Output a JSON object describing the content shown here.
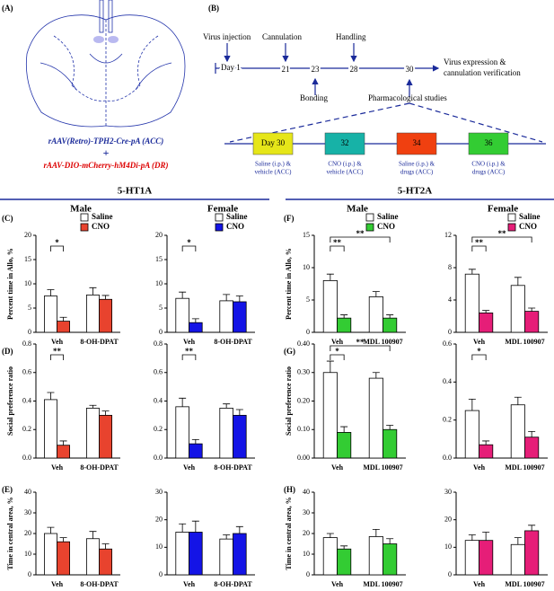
{
  "figure": {
    "panels": [
      "(A)",
      "(B)",
      "(C)",
      "(D)",
      "(E)",
      "(F)",
      "(G)",
      "(H)"
    ],
    "receptors": [
      "5-HT1A",
      "5-HT2A"
    ],
    "sexes": [
      "Male",
      "Female",
      "Male",
      "Female"
    ],
    "virus": [
      "rAAV(Retro)-TPH2-Cre-pA (ACC)",
      "+",
      "rAAV-DIO-mCherry-hM4Di-pA (DR)"
    ],
    "timeline": {
      "events": [
        "Virus injection",
        "Cannulation",
        "Handling",
        "Bonding",
        "Pharmacological studies"
      ],
      "days": [
        "Day 1",
        "21",
        "23",
        "28",
        "30"
      ],
      "end": [
        "Virus expression &",
        "cannulation verification"
      ],
      "boxes": [
        "Day 30",
        "32",
        "34",
        "36"
      ],
      "captions": [
        [
          "Saline (i.p.) &",
          "vehicle (ACC)"
        ],
        [
          "CNO (i.p.) &",
          "vehicle (ACC)"
        ],
        [
          "Saline (i.p.) &",
          "drugs (ACC)"
        ],
        [
          "CNO (i.p.) &",
          "drugs (ACC)"
        ]
      ]
    }
  },
  "chart_data": [
    {
      "type": "bar",
      "ylabel": "Percent time in Allo, %",
      "categories": [
        "Veh",
        "8-OH-DPAT"
      ],
      "ylim": [
        0,
        20
      ],
      "yticks": [
        0,
        5,
        10,
        15,
        20
      ],
      "significance": [
        "*"
      ],
      "series": [
        {
          "name": "Saline",
          "color": "#ffffff",
          "values": [
            7.5,
            7.7
          ],
          "errors": [
            1.3,
            1.5
          ]
        },
        {
          "name": "CNO",
          "color": "#e8432e",
          "values": [
            2.3,
            6.8
          ],
          "errors": [
            0.8,
            0.8
          ]
        }
      ]
    },
    {
      "type": "bar",
      "categories": [
        "Veh",
        "8-OH-DPAT"
      ],
      "ylim": [
        0,
        20
      ],
      "yticks": [
        0,
        5,
        10,
        15,
        20
      ],
      "significance": [
        "*"
      ],
      "series": [
        {
          "name": "Saline",
          "color": "#ffffff",
          "values": [
            7,
            6.5
          ],
          "errors": [
            1.3,
            1.3
          ]
        },
        {
          "name": "CNO",
          "color": "#1414e6",
          "values": [
            2,
            6.3
          ],
          "errors": [
            0.8,
            1.2
          ]
        }
      ]
    },
    {
      "type": "bar",
      "ylabel": "Percent time in Allo, %",
      "categories": [
        "Veh",
        "MDL 100907"
      ],
      "ylim": [
        0,
        15
      ],
      "yticks": [
        0,
        5,
        10,
        15
      ],
      "significance": [
        "**",
        "**"
      ],
      "series": [
        {
          "name": "Saline",
          "color": "#ffffff",
          "values": [
            8,
            5.5
          ],
          "errors": [
            1,
            0.8
          ]
        },
        {
          "name": "CNO",
          "color": "#33cc33",
          "values": [
            2.2,
            2.2
          ],
          "errors": [
            0.5,
            0.5
          ]
        }
      ]
    },
    {
      "type": "bar",
      "categories": [
        "Veh",
        "MDL 100907"
      ],
      "ylim": [
        0,
        12
      ],
      "yticks": [
        0,
        4,
        8,
        12
      ],
      "significance": [
        "**",
        "**"
      ],
      "series": [
        {
          "name": "Saline",
          "color": "#ffffff",
          "values": [
            7.2,
            5.8
          ],
          "errors": [
            0.6,
            1
          ]
        },
        {
          "name": "CNO",
          "color": "#e61e78",
          "values": [
            2.4,
            2.6
          ],
          "errors": [
            0.3,
            0.4
          ]
        }
      ]
    },
    {
      "type": "bar",
      "ylabel": "Social preference ratio",
      "categories": [
        "Veh",
        "8-OH-DPAT"
      ],
      "ylim": [
        0,
        0.8
      ],
      "yticks": [
        {
          "value": 0,
          "label": "0.0"
        },
        0.2,
        0.4,
        0.6,
        0.8
      ],
      "significance": [
        "**"
      ],
      "series": [
        {
          "color": "#ffffff",
          "values": [
            0.41,
            0.35
          ],
          "errors": [
            0.05,
            0.02
          ]
        },
        {
          "color": "#e8432e",
          "values": [
            0.09,
            0.3
          ],
          "errors": [
            0.03,
            0.03
          ]
        }
      ]
    },
    {
      "type": "bar",
      "categories": [
        "Veh",
        "8-OH-DPAT"
      ],
      "ylim": [
        0,
        0.8
      ],
      "yticks": [
        {
          "value": 0,
          "label": "0.0"
        },
        0.2,
        0.4,
        0.6,
        0.8
      ],
      "significance": [
        "**"
      ],
      "series": [
        {
          "color": "#ffffff",
          "values": [
            0.36,
            0.35
          ],
          "errors": [
            0.06,
            0.03
          ]
        },
        {
          "color": "#1414e6",
          "values": [
            0.1,
            0.3
          ],
          "errors": [
            0.03,
            0.04
          ]
        }
      ]
    },
    {
      "type": "bar",
      "ylabel": "Social preference ratio",
      "categories": [
        "Veh",
        "MDL 100907"
      ],
      "ylim": [
        0,
        0.4
      ],
      "yticks": [
        {
          "value": 0,
          "label": "0.00"
        },
        {
          "value": 0.1,
          "label": "0.10"
        },
        {
          "value": 0.2,
          "label": "0.20"
        },
        {
          "value": 0.3,
          "label": "0.30"
        },
        {
          "value": 0.4,
          "label": "0.40"
        }
      ],
      "significance": [
        "*",
        "**"
      ],
      "series": [
        {
          "color": "#ffffff",
          "values": [
            0.3,
            0.28
          ],
          "errors": [
            0.04,
            0.02
          ]
        },
        {
          "color": "#33cc33",
          "values": [
            0.09,
            0.1
          ],
          "errors": [
            0.02,
            0.015
          ]
        }
      ]
    },
    {
      "type": "bar",
      "categories": [
        "Veh",
        "MDL 100907"
      ],
      "ylim": [
        0,
        0.6
      ],
      "yticks": [
        {
          "value": 0,
          "label": "0.0"
        },
        0.2,
        0.4,
        0.6
      ],
      "significance": [
        "*"
      ],
      "series": [
        {
          "color": "#ffffff",
          "values": [
            0.25,
            0.28
          ],
          "errors": [
            0.06,
            0.04
          ]
        },
        {
          "color": "#e61e78",
          "values": [
            0.07,
            0.11
          ],
          "errors": [
            0.02,
            0.03
          ]
        }
      ]
    },
    {
      "type": "bar",
      "ylabel": "Time in central area, %",
      "categories": [
        "Veh",
        "8-OH-DPAT"
      ],
      "ylim": [
        0,
        40
      ],
      "yticks": [
        0,
        10,
        20,
        30,
        40
      ],
      "series": [
        {
          "color": "#ffffff",
          "values": [
            20,
            17.5
          ],
          "errors": [
            3,
            3.5
          ]
        },
        {
          "color": "#e8432e",
          "values": [
            16,
            12.5
          ],
          "errors": [
            2,
            2.5
          ]
        }
      ]
    },
    {
      "type": "bar",
      "categories": [
        "Veh",
        "8-OH-DPAT"
      ],
      "ylim": [
        0,
        30
      ],
      "yticks": [
        0,
        10,
        20,
        30
      ],
      "series": [
        {
          "color": "#ffffff",
          "values": [
            15.5,
            13
          ],
          "errors": [
            3,
            1.5
          ]
        },
        {
          "color": "#1414e6",
          "values": [
            15.5,
            15
          ],
          "errors": [
            4,
            2.5
          ]
        }
      ]
    },
    {
      "type": "bar",
      "ylabel": "Time in central area, %",
      "categories": [
        "Veh",
        "MDL 100907"
      ],
      "ylim": [
        0,
        40
      ],
      "yticks": [
        0,
        10,
        20,
        30,
        40
      ],
      "series": [
        {
          "color": "#ffffff",
          "values": [
            18,
            18.5
          ],
          "errors": [
            2,
            3.5
          ]
        },
        {
          "color": "#33cc33",
          "values": [
            12.5,
            15
          ],
          "errors": [
            1.5,
            2.5
          ]
        }
      ]
    },
    {
      "type": "bar",
      "categories": [
        "Veh",
        "MDL 100907"
      ],
      "ylim": [
        0,
        30
      ],
      "yticks": [
        0,
        10,
        20,
        30
      ],
      "series": [
        {
          "color": "#ffffff",
          "values": [
            12.5,
            11
          ],
          "errors": [
            2,
            2.5
          ]
        },
        {
          "color": "#e61e78",
          "values": [
            12.5,
            16
          ],
          "errors": [
            3,
            2
          ]
        }
      ]
    }
  ]
}
